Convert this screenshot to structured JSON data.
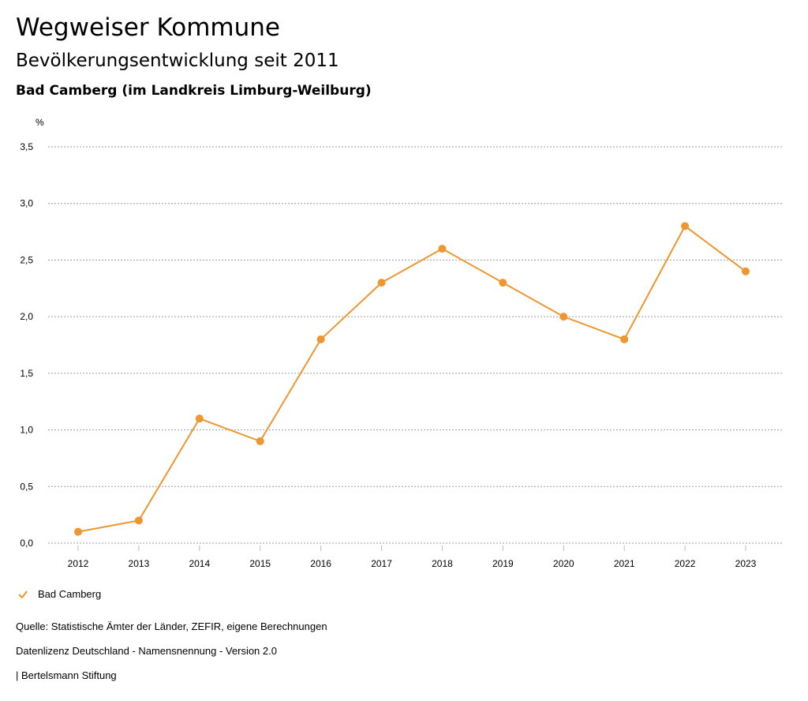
{
  "header": {
    "title": "Wegweiser Kommune",
    "subtitle": "Bevölkerungsentwicklung seit 2011",
    "region": "Bad Camberg (im Landkreis Limburg-Weilburg)"
  },
  "chart_data": {
    "type": "line",
    "ylabel": "%",
    "ylim": [
      0,
      3.5
    ],
    "yticks": [
      "0,0",
      "0,5",
      "1,0",
      "1,5",
      "2,0",
      "2,5",
      "3,0",
      "3,5"
    ],
    "categories": [
      "2012",
      "2013",
      "2014",
      "2015",
      "2016",
      "2017",
      "2018",
      "2019",
      "2020",
      "2021",
      "2022",
      "2023"
    ],
    "series": [
      {
        "name": "Bad Camberg",
        "color": "#ef9630",
        "values": [
          0.1,
          0.2,
          1.1,
          0.9,
          1.8,
          2.3,
          2.6,
          2.3,
          2.0,
          1.8,
          2.8,
          2.4
        ]
      }
    ],
    "grid": true,
    "legend": "bottom-left"
  },
  "footer": {
    "source": "Quelle: Statistische Ämter der Länder, ZEFIR, eigene Berechnungen",
    "license": "Datenlizenz Deutschland - Namensnennung - Version 2.0",
    "publisher": "| Bertelsmann Stiftung"
  }
}
